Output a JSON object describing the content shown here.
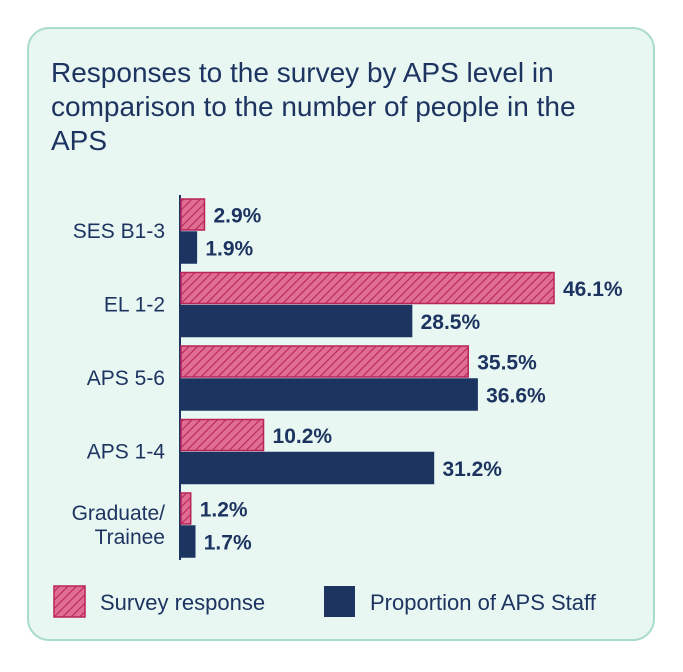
{
  "colors": {
    "survey": "#e06e92",
    "survey_stroke": "#b8245a",
    "staff": "#1d3461",
    "text": "#1d3461",
    "card_bg": "#e9f7f2",
    "card_border": "#a8dcc9"
  },
  "chart_data": {
    "type": "bar",
    "orientation": "horizontal",
    "title": "Responses to the survey by APS level in comparison to the number of people in the APS",
    "categories": [
      [
        "SES B1-3"
      ],
      [
        "EL 1-2"
      ],
      [
        "APS 5-6"
      ],
      [
        "APS 1-4"
      ],
      [
        "Graduate/",
        "Trainee"
      ]
    ],
    "series": [
      {
        "name": "Survey response",
        "pattern": "hatched",
        "values": [
          2.9,
          46.1,
          35.5,
          10.2,
          1.2
        ],
        "labels": [
          "2.9%",
          "46.1%",
          "35.5%",
          "10.2%",
          "1.2%"
        ]
      },
      {
        "name": "Proportion of APS Staff",
        "pattern": "solid",
        "values": [
          1.9,
          28.5,
          36.6,
          31.2,
          1.7
        ],
        "labels": [
          "1.9%",
          "28.5%",
          "36.6%",
          "31.2%",
          "1.7%"
        ]
      }
    ],
    "xlim": [
      0,
      46.1
    ],
    "grid": false,
    "legend_position": "bottom"
  }
}
